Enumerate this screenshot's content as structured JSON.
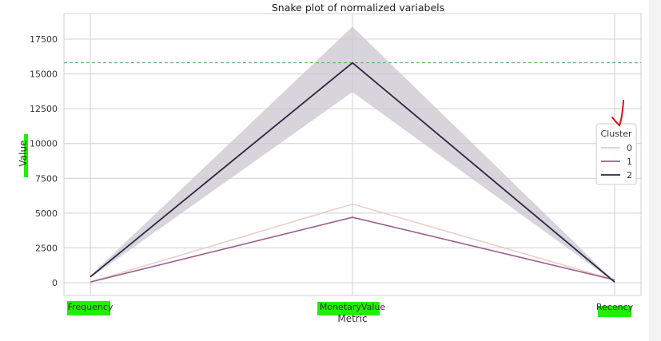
{
  "chart_data": {
    "type": "line",
    "title": "Snake plot of normalized variabels",
    "xlabel": "Metric",
    "ylabel": "Value",
    "categories": [
      "Frequency",
      "MonetaryValue",
      "Recency"
    ],
    "ylim": [
      -800,
      19000
    ],
    "yticks": [
      0,
      2500,
      5000,
      7500,
      10000,
      12500,
      15000,
      17500
    ],
    "grid": true,
    "legend": {
      "title": "Cluster",
      "placement": "right",
      "entries": [
        "0",
        "1",
        "2"
      ]
    },
    "series": [
      {
        "name": "0",
        "values": [
          50,
          5650,
          200
        ],
        "color": "#e8cfc6"
      },
      {
        "name": "1",
        "values": [
          50,
          4700,
          200
        ],
        "color": "#9c5d8c"
      },
      {
        "name": "2",
        "values": [
          420,
          15800,
          50
        ],
        "color": "#2d2640",
        "band_lower": [
          350,
          13700,
          30
        ],
        "band_upper": [
          500,
          18400,
          80
        ]
      }
    ],
    "reference_line": {
      "y": 15800,
      "color": "#55aa55",
      "style": "dashed"
    }
  },
  "colors": {
    "highlight": "#22ee00",
    "annotation": "#dd1111",
    "band": "#cbc5cf",
    "grid": "#d0d0d0"
  }
}
